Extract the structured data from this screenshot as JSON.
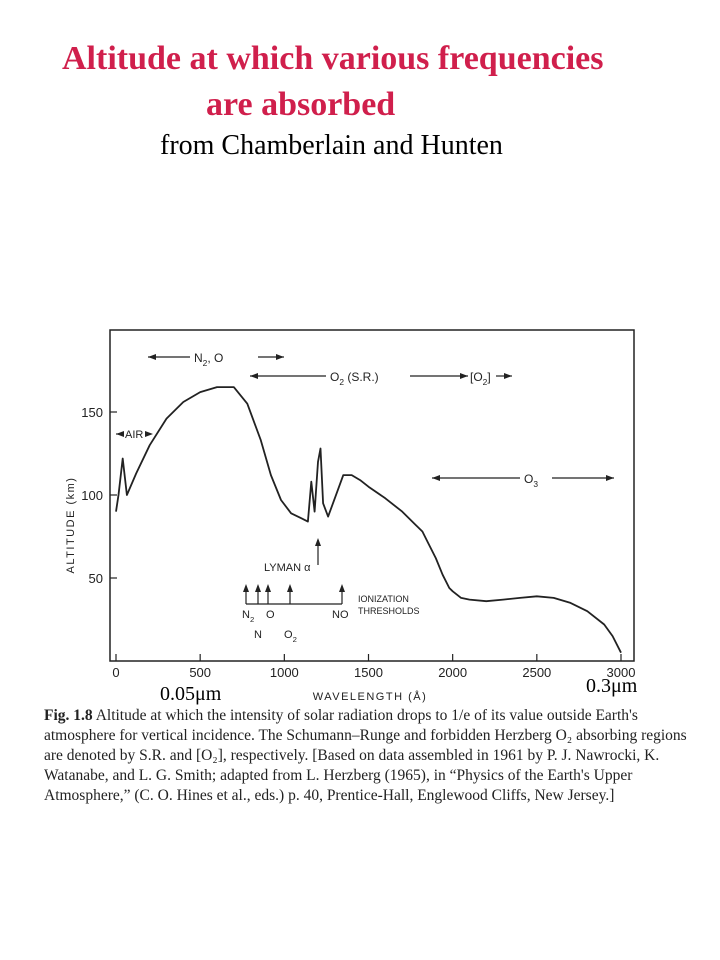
{
  "title_line1": "Altitude at which various frequencies",
  "title_line2": "are absorbed",
  "subtitle": "from Chamberlain and Hunten",
  "colors": {
    "title": "#d01f4c",
    "ink": "#222222"
  },
  "chart_data": {
    "type": "line",
    "xlabel": "WAVELENGTH  (Å)",
    "ylabel": "ALTITUDE  (km)",
    "xlim": [
      0,
      3000
    ],
    "ylim": [
      0,
      200
    ],
    "xticks": [
      "0",
      "500",
      "1000",
      "1500",
      "2000",
      "2500",
      "3000"
    ],
    "yticks": [
      "50",
      "100",
      "150"
    ],
    "grid": false,
    "series": [
      {
        "x": [
          0,
          15,
          40,
          65,
          120,
          200,
          300,
          400,
          500,
          600,
          700,
          780,
          860,
          920,
          980,
          1040,
          1100,
          1140,
          1160,
          1180,
          1200,
          1215,
          1230,
          1260,
          1300,
          1350,
          1400,
          1450,
          1500,
          1600,
          1700,
          1780,
          1820,
          1850,
          1900,
          1940,
          1980,
          2000,
          2050,
          2100,
          2200,
          2300,
          2400,
          2500,
          2600,
          2700,
          2800,
          2900,
          2950,
          3000
        ],
        "y": [
          90,
          100,
          122,
          100,
          113,
          130,
          146,
          156,
          162,
          165,
          165,
          155,
          133,
          112,
          97,
          89,
          86,
          84,
          108,
          90,
          120,
          128,
          95,
          87,
          98,
          112,
          112,
          109,
          105,
          98,
          90,
          82,
          78,
          72,
          62,
          52,
          44,
          42,
          38,
          37,
          36,
          37,
          38,
          39,
          38,
          35,
          30,
          22,
          15,
          5
        ]
      }
    ],
    "annotations": [
      {
        "text": "N",
        "sub": "2",
        "tail": ", O"
      },
      {
        "text": "O",
        "sub": "2",
        "tail": "  (S.R.)"
      },
      {
        "text": "[O",
        "sub": "2",
        "tail": "]"
      },
      {
        "text": "AIR"
      },
      {
        "text": "O",
        "sub": "3",
        "tail": ""
      },
      {
        "text": "LYMAN α"
      },
      {
        "text": "IONIZATION"
      },
      {
        "text": "THRESHOLDS"
      },
      {
        "text": "N",
        "sub": "2",
        "tail": ""
      },
      {
        "text": "O"
      },
      {
        "text": "N"
      },
      {
        "text": "O",
        "sub": "2",
        "tail": ""
      },
      {
        "text": "NO"
      }
    ],
    "wavelength_labels": [
      "0.05μm",
      "0.3μm"
    ]
  },
  "caption": {
    "label": "Fig. 1.8",
    "text": "Altitude at which the intensity of solar radiation drops to 1/e of its value outside Earth's atmosphere for vertical incidence. The Schumann–Runge and forbidden Herzberg O₂ absorbing regions are denoted by S.R. and [O₂], respectively. [Based on data assembled in 1961 by P. J. Nawrocki, K. Watanabe, and L. G. Smith; adapted from L. Herzberg (1965), in “Physics of the Earth's Upper Atmosphere,” (C. O. Hines et al., eds.) p. 40, Prentice-Hall, Englewood Cliffs, New Jersey.]"
  }
}
